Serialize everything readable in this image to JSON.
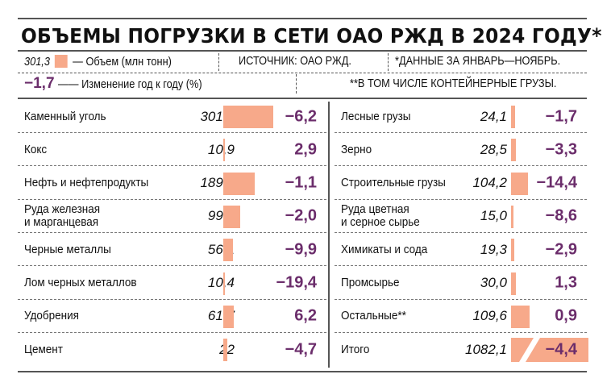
{
  "title": "ОБЪЕМЫ ПОГРУЗКИ В СЕТИ ОАО РЖД В 2024 ГОДУ*",
  "legend": {
    "volume_value": "301,3",
    "volume_label": "— Объем (млн тонн)",
    "change_value": "−1,7",
    "change_label": "—— Изменение год к году (%)"
  },
  "source": "ИСТОЧНИК: ОАО РЖД.",
  "note1": "*ДАННЫЕ ЗА ЯНВАРЬ—НОЯБРЬ.",
  "note2": "**В ТОМ ЧИСЛЕ КОНТЕЙНЕРНЫЕ ГРУЗЫ.",
  "colors": {
    "bar": "#f7a98a",
    "change": "#6b2d6b"
  },
  "chart_data": {
    "type": "bar",
    "title": "ОБЪЕМЫ ПОГРУЗКИ В СЕТИ ОАО РЖД В 2024 ГОДУ*",
    "left": [
      {
        "label": "Каменный уголь",
        "value": 301.3,
        "value_text": "301,3",
        "change_text": "−6,2"
      },
      {
        "label": "Кокс",
        "value": 10.9,
        "value_text": "10,9",
        "change_text": "2,9"
      },
      {
        "label": "Нефть и нефтепродукты",
        "value": 189.5,
        "value_text": "189,5",
        "change_text": "−1,1"
      },
      {
        "label": "Руда железная\nи марганцевая",
        "value": 99.7,
        "value_text": "99,7",
        "change_text": "−2,0"
      },
      {
        "label": "Черные металлы",
        "value": 56.1,
        "value_text": "56,1",
        "change_text": "−9,9"
      },
      {
        "label": "Лом черных металлов",
        "value": 10.4,
        "value_text": "10,4",
        "change_text": "−19,4"
      },
      {
        "label": "Удобрения",
        "value": 61.7,
        "value_text": "61,7",
        "change_text": "6,2"
      },
      {
        "label": "Цемент",
        "value": 22,
        "value_text": "22",
        "change_text": "−4,7"
      }
    ],
    "right": [
      {
        "label": "Лесные грузы",
        "value": 24.1,
        "value_text": "24,1",
        "change_text": "−1,7"
      },
      {
        "label": "Зерно",
        "value": 28.5,
        "value_text": "28,5",
        "change_text": "−3,3"
      },
      {
        "label": "Строительные грузы",
        "value": 104.2,
        "value_text": "104,2",
        "change_text": "−14,4"
      },
      {
        "label": "Руда цветная\nи серное сырье",
        "value": 15.0,
        "value_text": "15,0",
        "change_text": "−8,6"
      },
      {
        "label": "Химикаты и сода",
        "value": 19.3,
        "value_text": "19,3",
        "change_text": "−2,9"
      },
      {
        "label": "Промсырье",
        "value": 30.0,
        "value_text": "30,0",
        "change_text": "1,3"
      },
      {
        "label": "Остальные**",
        "value": 109.6,
        "value_text": "109,6",
        "change_text": "0,9"
      },
      {
        "label": "Итого",
        "value": 1082.1,
        "value_text": "1082,1",
        "change_text": "−4,4",
        "broken_bar": true
      }
    ]
  }
}
